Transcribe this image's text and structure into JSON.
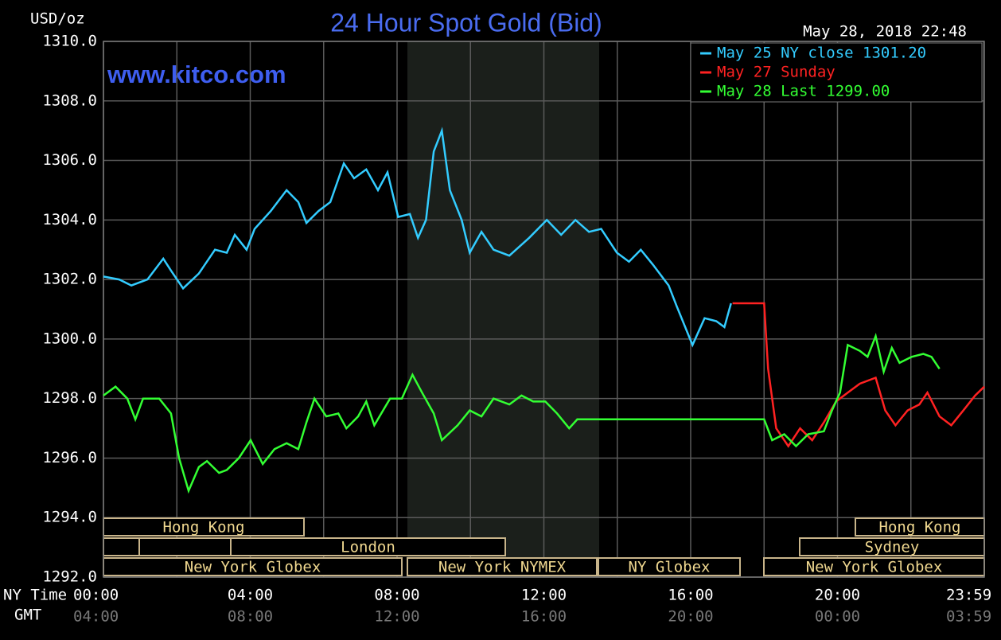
{
  "chart_data": {
    "type": "line",
    "title": "24 Hour Spot Gold (Bid)",
    "subtitle": "www.kitco.com",
    "ylabel": "USD/oz",
    "timestamp": "May 28, 2018 22:48",
    "xlabel": "NY Time",
    "x2label": "GMT",
    "xlim": [
      0,
      24
    ],
    "ylim": [
      1292,
      1310
    ],
    "xticks": [
      {
        "value": 0,
        "label": "00:00"
      },
      {
        "value": 4,
        "label": "04:00"
      },
      {
        "value": 8,
        "label": "08:00"
      },
      {
        "value": 12,
        "label": "12:00"
      },
      {
        "value": 16,
        "label": "16:00"
      },
      {
        "value": 20,
        "label": "20:00"
      },
      {
        "value": 23.983,
        "label": "23:59"
      }
    ],
    "gmt_labels": [
      "04:00",
      "08:00",
      "12:00",
      "16:00",
      "20:00",
      "00:00",
      "03:59"
    ],
    "x_minor_ticks": [
      2,
      6,
      10,
      14,
      18,
      22
    ],
    "yticks": [
      {
        "value": 1292,
        "label": "1292.0"
      },
      {
        "value": 1294,
        "label": "1294.0"
      },
      {
        "value": 1296,
        "label": "1296.0"
      },
      {
        "value": 1298,
        "label": "1298.0"
      },
      {
        "value": 1300,
        "label": "1300.0"
      },
      {
        "value": 1302,
        "label": "1302.0"
      },
      {
        "value": 1304,
        "label": "1304.0"
      },
      {
        "value": 1306,
        "label": "1306.0"
      },
      {
        "value": 1308,
        "label": "1308.0"
      },
      {
        "value": 1310,
        "label": "1310.0"
      }
    ],
    "grid": true,
    "legend": "upper right",
    "sessions": [
      "Hong Kong",
      "Hong Kong",
      "London",
      "Sydney",
      "New York Globex",
      "New York NYMEX",
      "NY Globex",
      "New York Globex"
    ],
    "series": [
      {
        "name": "May 25 NY close 1301.20",
        "color": "#33ccff",
        "x": [
          0,
          0.43,
          0.76,
          1.2,
          1.63,
          1.84,
          2.17,
          2.6,
          3.04,
          3.36,
          3.58,
          3.9,
          4.12,
          4.56,
          4.99,
          5.31,
          5.53,
          5.86,
          6.18,
          6.55,
          6.83,
          7.16,
          7.48,
          7.74,
          8.03,
          8.35,
          8.57,
          8.79,
          9.0,
          9.22,
          9.44,
          9.76,
          9.98,
          10.3,
          10.63,
          11.06,
          11.6,
          12.08,
          12.47,
          12.86,
          13.23,
          13.56,
          13.99,
          14.32,
          14.64,
          14.97,
          15.4,
          15.62,
          16.05,
          16.38,
          16.7,
          16.92,
          17.1
        ],
        "values": [
          1302.1,
          1302.0,
          1301.8,
          1302.0,
          1302.7,
          1302.3,
          1301.7,
          1302.2,
          1303.0,
          1302.9,
          1303.5,
          1303.0,
          1303.7,
          1304.3,
          1305.0,
          1304.6,
          1303.9,
          1304.3,
          1304.6,
          1305.9,
          1305.4,
          1305.7,
          1305.0,
          1305.6,
          1304.1,
          1304.2,
          1303.4,
          1304.0,
          1306.3,
          1307.0,
          1305.0,
          1304.0,
          1302.9,
          1303.6,
          1303.0,
          1302.8,
          1303.4,
          1304.0,
          1303.5,
          1304.0,
          1303.6,
          1303.7,
          1302.9,
          1302.6,
          1303.0,
          1302.5,
          1301.8,
          1301.1,
          1299.8,
          1300.7,
          1300.6,
          1300.4,
          1301.2
        ]
      },
      {
        "name": "May 27 Sunday",
        "color": "#ff2222",
        "x": [
          17.14,
          18.0,
          18.11,
          18.33,
          18.66,
          18.98,
          19.31,
          19.63,
          19.96,
          20.28,
          20.61,
          21.04,
          21.3,
          21.58,
          21.91,
          22.23,
          22.45,
          22.78,
          23.1,
          23.43,
          23.75,
          24.0
        ],
        "values": [
          1301.2,
          1301.2,
          1299.0,
          1297.0,
          1296.4,
          1297.0,
          1296.6,
          1297.2,
          1297.9,
          1298.2,
          1298.5,
          1298.7,
          1297.6,
          1297.1,
          1297.6,
          1297.8,
          1298.2,
          1297.4,
          1297.1,
          1297.6,
          1298.1,
          1298.4
        ]
      },
      {
        "name": "May 28 Last 1299.00",
        "color": "#33ff33",
        "x": [
          0,
          0.33,
          0.65,
          0.87,
          1.08,
          1.52,
          1.84,
          2.06,
          2.32,
          2.6,
          2.82,
          3.15,
          3.36,
          3.69,
          4.01,
          4.34,
          4.66,
          4.99,
          5.31,
          5.53,
          5.75,
          6.07,
          6.4,
          6.62,
          6.94,
          7.16,
          7.38,
          7.81,
          8.13,
          8.42,
          8.68,
          9.0,
          9.22,
          9.65,
          9.98,
          10.3,
          10.63,
          11.06,
          11.39,
          11.71,
          12.04,
          12.36,
          12.69,
          12.91,
          18.0,
          18.22,
          18.55,
          18.87,
          19.2,
          19.63,
          19.85,
          20.07,
          20.28,
          20.61,
          20.82,
          21.04,
          21.26,
          21.48,
          21.69,
          22.02,
          22.34,
          22.56,
          22.78
        ],
        "values": [
          1298.1,
          1298.4,
          1298.0,
          1297.3,
          1298.0,
          1298.0,
          1297.5,
          1296.0,
          1294.9,
          1295.7,
          1295.9,
          1295.5,
          1295.6,
          1296.0,
          1296.6,
          1295.8,
          1296.3,
          1296.5,
          1296.3,
          1297.2,
          1298.0,
          1297.4,
          1297.5,
          1297.0,
          1297.4,
          1297.9,
          1297.1,
          1298.0,
          1298.0,
          1298.8,
          1298.2,
          1297.5,
          1296.6,
          1297.1,
          1297.6,
          1297.4,
          1298.0,
          1297.8,
          1298.1,
          1297.9,
          1297.9,
          1297.5,
          1297.0,
          1297.3,
          1297.3,
          1296.6,
          1296.8,
          1296.4,
          1296.8,
          1296.9,
          1297.6,
          1298.2,
          1299.8,
          1299.6,
          1299.4,
          1300.1,
          1298.9,
          1299.7,
          1299.2,
          1299.4,
          1299.5,
          1299.4,
          1299.0
        ]
      }
    ]
  }
}
